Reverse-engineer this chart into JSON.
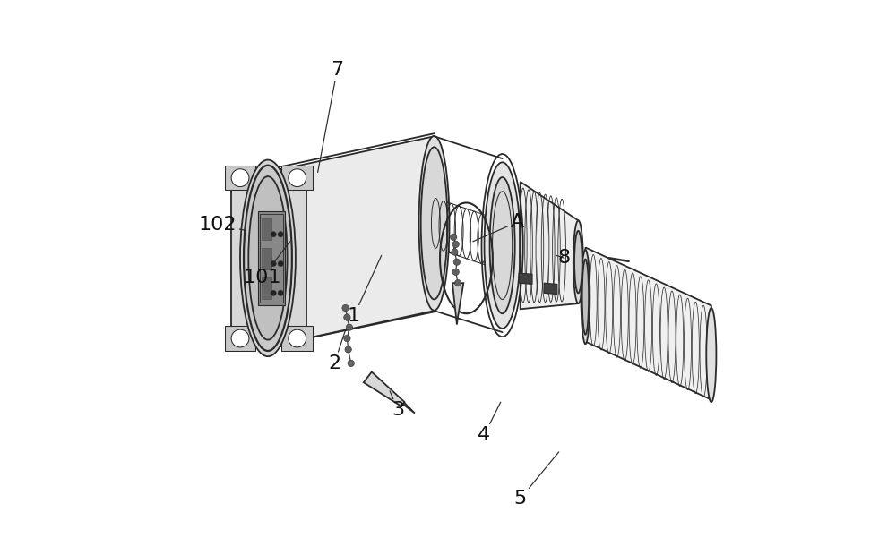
{
  "bg_color": "#ffffff",
  "line_color": "#2a2a2a",
  "label_color": "#111111",
  "fig_width": 10.0,
  "fig_height": 6.2,
  "dpi": 100,
  "label_fontsize": 16,
  "leader_line_color": "#2a2a2a",
  "labels_info": {
    "1": [
      0.33,
      0.43,
      0.38,
      0.54
    ],
    "2": [
      0.295,
      0.345,
      0.315,
      0.405
    ],
    "3": [
      0.41,
      0.26,
      0.395,
      0.295
    ],
    "4": [
      0.565,
      0.215,
      0.595,
      0.275
    ],
    "5": [
      0.63,
      0.1,
      0.7,
      0.185
    ],
    "7": [
      0.3,
      0.875,
      0.265,
      0.69
    ],
    "8": [
      0.71,
      0.535,
      0.695,
      0.54
    ],
    "A": [
      0.625,
      0.6,
      0.545,
      0.565
    ],
    "101": [
      0.165,
      0.5,
      0.215,
      0.565
    ],
    "102": [
      0.085,
      0.595,
      0.135,
      0.585
    ]
  }
}
